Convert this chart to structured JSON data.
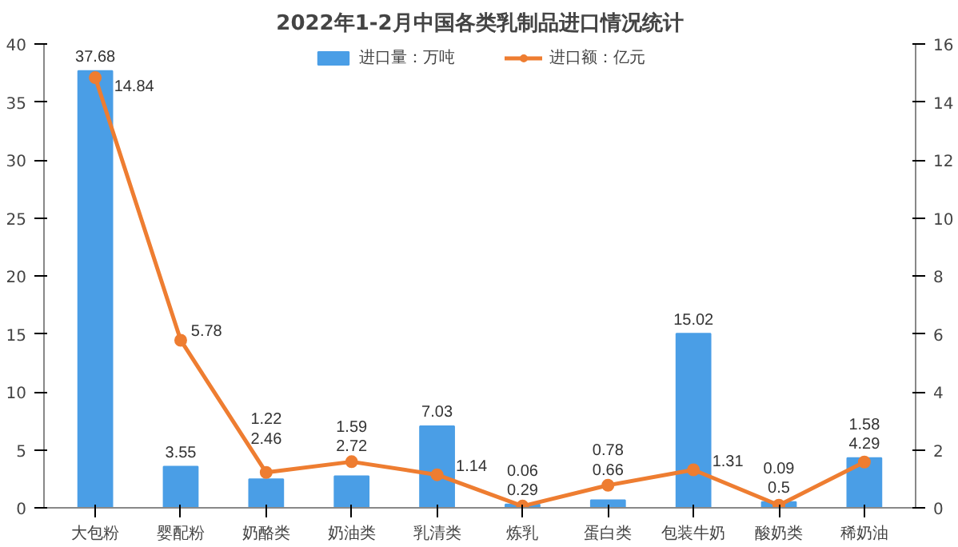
{
  "chart_data": {
    "type": "bar",
    "title": "2022年1-2月中国各类乳制品进口情况统计",
    "categories": [
      "大包粉",
      "婴配粉",
      "奶酪类",
      "奶油类",
      "乳清类",
      "炼乳",
      "蛋白类",
      "包装牛奶",
      "酸奶类",
      "稀奶油"
    ],
    "series": [
      {
        "name": "进口量：万吨",
        "color": "#4a9ee6",
        "values": [
          37.68,
          3.55,
          2.46,
          2.72,
          7.03,
          0.29,
          0.66,
          15.02,
          0.5,
          4.29
        ]
      },
      {
        "name": "进口额：亿元",
        "type": "line",
        "axis": "y2",
        "color": "#ee7d31",
        "values": [
          14.84,
          5.78,
          1.22,
          1.59,
          1.14,
          0.06,
          0.78,
          1.31,
          0.09,
          1.58
        ]
      }
    ],
    "ylim": [
      0,
      40
    ],
    "yticks": [
      0,
      5,
      10,
      15,
      20,
      25,
      30,
      35,
      40
    ],
    "y2lim": [
      0,
      16
    ],
    "y2ticks": [
      0,
      2,
      4,
      6,
      8,
      10,
      12,
      14,
      16
    ],
    "data_labels": true,
    "legend": "top",
    "marker": "circle",
    "grid": false
  }
}
